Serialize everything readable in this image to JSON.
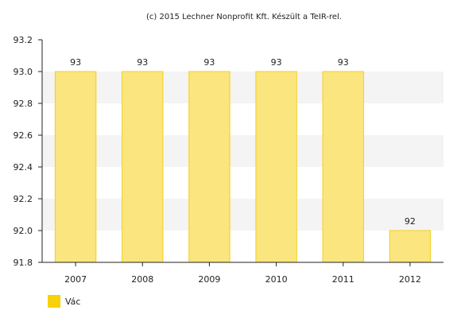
{
  "credit": "(c) 2015 Lechner Nonprofit Kft. Készült a TeIR-rel.",
  "colors": {
    "bar_fill": "#fbe57e",
    "bar_stroke": "#f2cf1e",
    "legend": "#f7d20a",
    "band": "#f4f4f4",
    "axis": "#222222"
  },
  "chart_data": {
    "type": "bar",
    "categories": [
      "2007",
      "2008",
      "2009",
      "2010",
      "2011",
      "2012"
    ],
    "series": [
      {
        "name": "Vác",
        "values": [
          93.0,
          93.0,
          93.0,
          93.0,
          93.0,
          92.0
        ],
        "data_labels": [
          "93",
          "93",
          "93",
          "93",
          "93",
          "92"
        ]
      }
    ],
    "ylim": [
      91.8,
      93.2
    ],
    "yticks": [
      "91.8",
      "92.0",
      "92.2",
      "92.4",
      "92.6",
      "92.8",
      "93.0",
      "93.2"
    ],
    "xlabel": "",
    "ylabel": "",
    "grid": true,
    "legend_position": "bottom-left"
  }
}
